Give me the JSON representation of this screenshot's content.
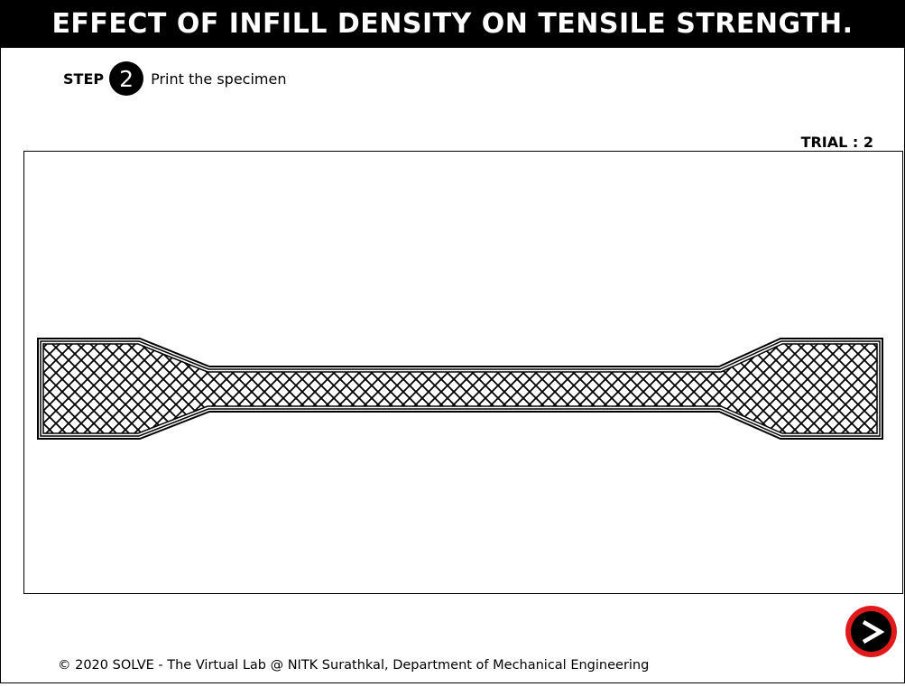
{
  "header": {
    "title": "EFFECT OF INFILL DENSITY ON TENSILE STRENGTH."
  },
  "step": {
    "label": "STEP",
    "number": "2",
    "instruction": "Print the specimen"
  },
  "trial": {
    "text": "TRIAL : 2"
  },
  "specimen": {
    "shape": "dog-bone tensile specimen",
    "infill_pattern": "diagonal crosshatch"
  },
  "nav": {
    "next_icon": "chevron-right-icon",
    "next_ring_color": "#e01a1a"
  },
  "footer": {
    "text": "© 2020 SOLVE - The Virtual Lab @ NITK Surathkal, Department of Mechanical Engineering"
  }
}
